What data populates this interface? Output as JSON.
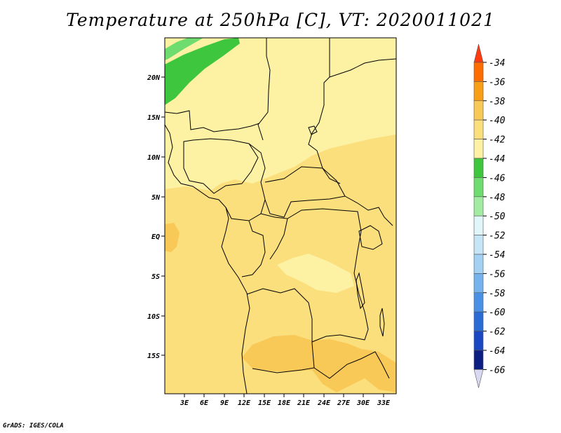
{
  "title": "Temperature at 250hPa [C], VT: 2020011021",
  "credit": "GrADS: IGES/COLA",
  "map": {
    "lat_labels": [
      "20N",
      "15N",
      "10N",
      "5N",
      "EQ",
      "5S",
      "10S",
      "15S"
    ],
    "lon_labels": [
      "3E",
      "6E",
      "9E",
      "12E",
      "15E",
      "18E",
      "21E",
      "24E",
      "27E",
      "30E",
      "33E"
    ],
    "field_colors": {
      "c_40_42": "#fdf1a4",
      "c_38_40": "#fbdf7c",
      "c_36_38": "#f9c958",
      "c_44_42": "#3ec63e",
      "c_46_44": "#6fdc6f"
    }
  },
  "colorbar": {
    "labels": [
      "-34",
      "-36",
      "-38",
      "-40",
      "-42",
      "-44",
      "-46",
      "-48",
      "-50",
      "-52",
      "-54",
      "-56",
      "-58",
      "-60",
      "-62",
      "-64",
      "-66"
    ],
    "colors": [
      "#ff3b0f",
      "#ff6d00",
      "#f99f15",
      "#f9c958",
      "#fbdf7c",
      "#fdf1a4",
      "#3ec63e",
      "#6fdc6f",
      "#a2eca2",
      "#e0f6f9",
      "#c6e6f8",
      "#a3d1f4",
      "#75b3ed",
      "#4a91e5",
      "#2a6bd6",
      "#1a47c2",
      "#0d1e82",
      "#08105b"
    ],
    "under_color": "#d8d8f0"
  }
}
